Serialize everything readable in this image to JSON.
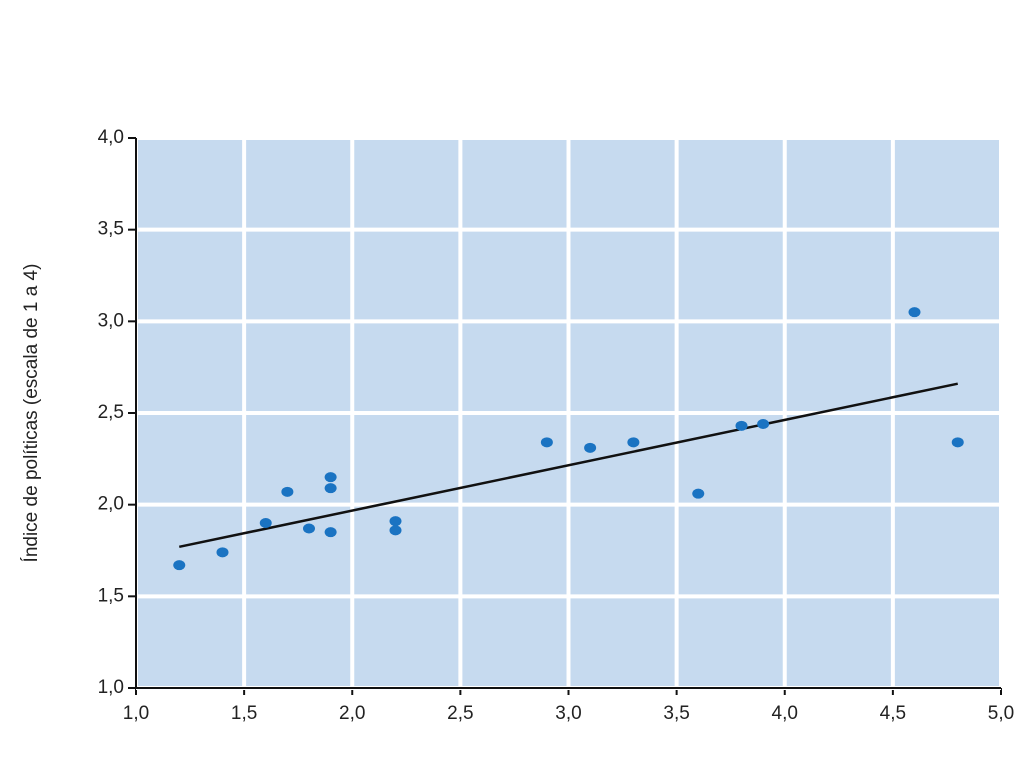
{
  "chart_data": {
    "type": "scatter",
    "y_label": "Índice de políticas (escala de 1 a 4)",
    "x": [
      1.2,
      1.4,
      1.6,
      1.7,
      1.8,
      1.9,
      1.9,
      1.9,
      2.2,
      2.2,
      2.9,
      3.1,
      3.3,
      3.6,
      3.8,
      3.9,
      4.6,
      4.8
    ],
    "values": [
      1.67,
      1.74,
      1.9,
      2.07,
      1.87,
      2.15,
      2.09,
      1.85,
      1.91,
      1.86,
      2.34,
      2.31,
      2.34,
      2.06,
      2.43,
      2.44,
      3.05,
      2.34
    ],
    "color": "#1a73c2",
    "trend_line": {
      "x": [
        1.2,
        4.8
      ],
      "values": [
        1.77,
        2.66
      ],
      "color": "#111111"
    },
    "xlim": [
      1.0,
      5.0
    ],
    "ylim": [
      1.0,
      4.0
    ],
    "xticks": [
      {
        "value": 1.0,
        "label": "1,0"
      },
      {
        "value": 1.5,
        "label": "1,5"
      },
      {
        "value": 2.0,
        "label": "2,0"
      },
      {
        "value": 2.5,
        "label": "2,5"
      },
      {
        "value": 3.0,
        "label": "3,0"
      },
      {
        "value": 3.5,
        "label": "3,5"
      },
      {
        "value": 4.0,
        "label": "4,0"
      },
      {
        "value": 4.5,
        "label": "4,5"
      },
      {
        "value": 5.0,
        "label": "5,0"
      }
    ],
    "yticks": [
      {
        "value": 1.0,
        "label": "1,0"
      },
      {
        "value": 1.5,
        "label": "1,5"
      },
      {
        "value": 2.0,
        "label": "2,0"
      },
      {
        "value": 2.5,
        "label": "2,5"
      },
      {
        "value": 3.0,
        "label": "3,0"
      },
      {
        "value": 3.5,
        "label": "3,5"
      },
      {
        "value": 4.0,
        "label": "4,0"
      }
    ],
    "grid": true,
    "background": "#c6daef"
  }
}
